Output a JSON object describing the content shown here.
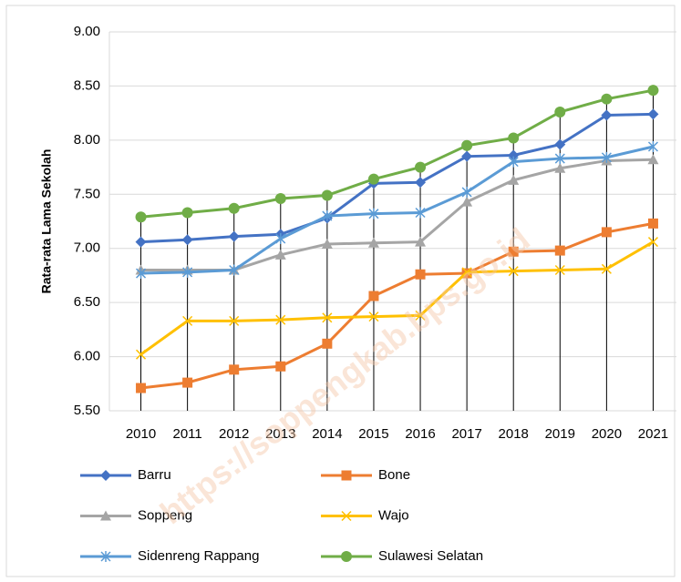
{
  "chart_data": {
    "type": "line",
    "y_label": "Rata-rata Lama Sekolah",
    "watermark": "https://soppengkab.bps.go.id",
    "categories": [
      "2010",
      "2011",
      "2012",
      "2013",
      "2014",
      "2015",
      "2016",
      "2017",
      "2018",
      "2019",
      "2020",
      "2021"
    ],
    "series": [
      {
        "name": "Barru",
        "color": "#4472c4",
        "marker": "diamond",
        "values": [
          7.06,
          7.08,
          7.11,
          7.13,
          7.28,
          7.6,
          7.61,
          7.85,
          7.86,
          7.96,
          8.23,
          8.24
        ]
      },
      {
        "name": "Bone",
        "color": "#ed7d31",
        "marker": "square",
        "values": [
          5.71,
          5.76,
          5.88,
          5.91,
          6.12,
          6.56,
          6.76,
          6.77,
          6.97,
          6.98,
          7.15,
          7.23
        ]
      },
      {
        "name": "Soppeng",
        "color": "#a5a5a5",
        "marker": "triangle",
        "values": [
          6.8,
          6.8,
          6.8,
          6.94,
          7.04,
          7.05,
          7.06,
          7.43,
          7.63,
          7.74,
          7.81,
          7.82
        ]
      },
      {
        "name": "Wajo",
        "color": "#ffc000",
        "marker": "x",
        "values": [
          6.02,
          6.33,
          6.33,
          6.34,
          6.36,
          6.37,
          6.38,
          6.78,
          6.79,
          6.8,
          6.81,
          7.06
        ]
      },
      {
        "name": "Sidenreng Rappang",
        "color": "#5b9bd5",
        "marker": "star",
        "values": [
          6.77,
          6.78,
          6.8,
          7.09,
          7.3,
          7.32,
          7.33,
          7.52,
          7.8,
          7.83,
          7.84,
          7.94
        ]
      },
      {
        "name": "Sulawesi Selatan",
        "color": "#70ad47",
        "marker": "circle",
        "values": [
          7.29,
          7.33,
          7.37,
          7.46,
          7.49,
          7.64,
          7.75,
          7.95,
          8.02,
          8.26,
          8.38,
          8.46
        ]
      }
    ],
    "ylim": [
      5.5,
      9.0
    ],
    "yticks": [
      {
        "value": 5.5,
        "label": "5.50"
      },
      {
        "value": 6.0,
        "label": "6.00"
      },
      {
        "value": 6.5,
        "label": "6.50"
      },
      {
        "value": 7.0,
        "label": "7.00"
      },
      {
        "value": 7.5,
        "label": "7.50"
      },
      {
        "value": 8.0,
        "label": "8.00"
      },
      {
        "value": 8.5,
        "label": "8.50"
      },
      {
        "value": 9.0,
        "label": "9.00"
      }
    ],
    "grid": true,
    "drop_lines": true,
    "legend": "bottom"
  }
}
